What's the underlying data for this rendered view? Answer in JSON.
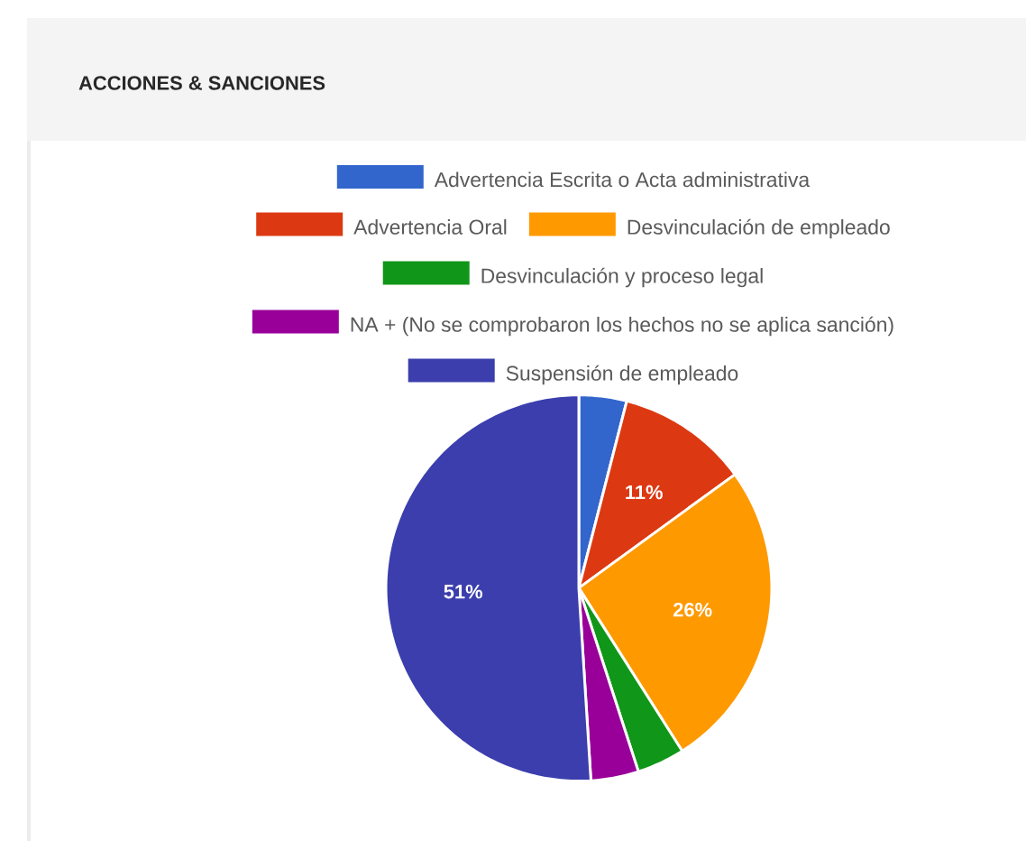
{
  "chart_data": {
    "type": "pie",
    "title": "ACCIONES & SANCIONES",
    "categories": [
      "Advertencia Escrita o Acta administrativa",
      "Advertencia Oral",
      "Desvinculación de empleado",
      "Desvinculación y proceso legal",
      "NA + (No se comprobaron los hechos no se aplica sanción)",
      "Suspensión de empleado"
    ],
    "values": [
      4,
      11,
      26,
      4,
      4,
      51
    ],
    "colors": [
      "#3366cc",
      "#dc3912",
      "#ff9900",
      "#109618",
      "#990099",
      "#3b3eac"
    ],
    "value_labels": [
      null,
      "11%",
      "26%",
      null,
      null,
      "51%"
    ],
    "legend": "top"
  }
}
